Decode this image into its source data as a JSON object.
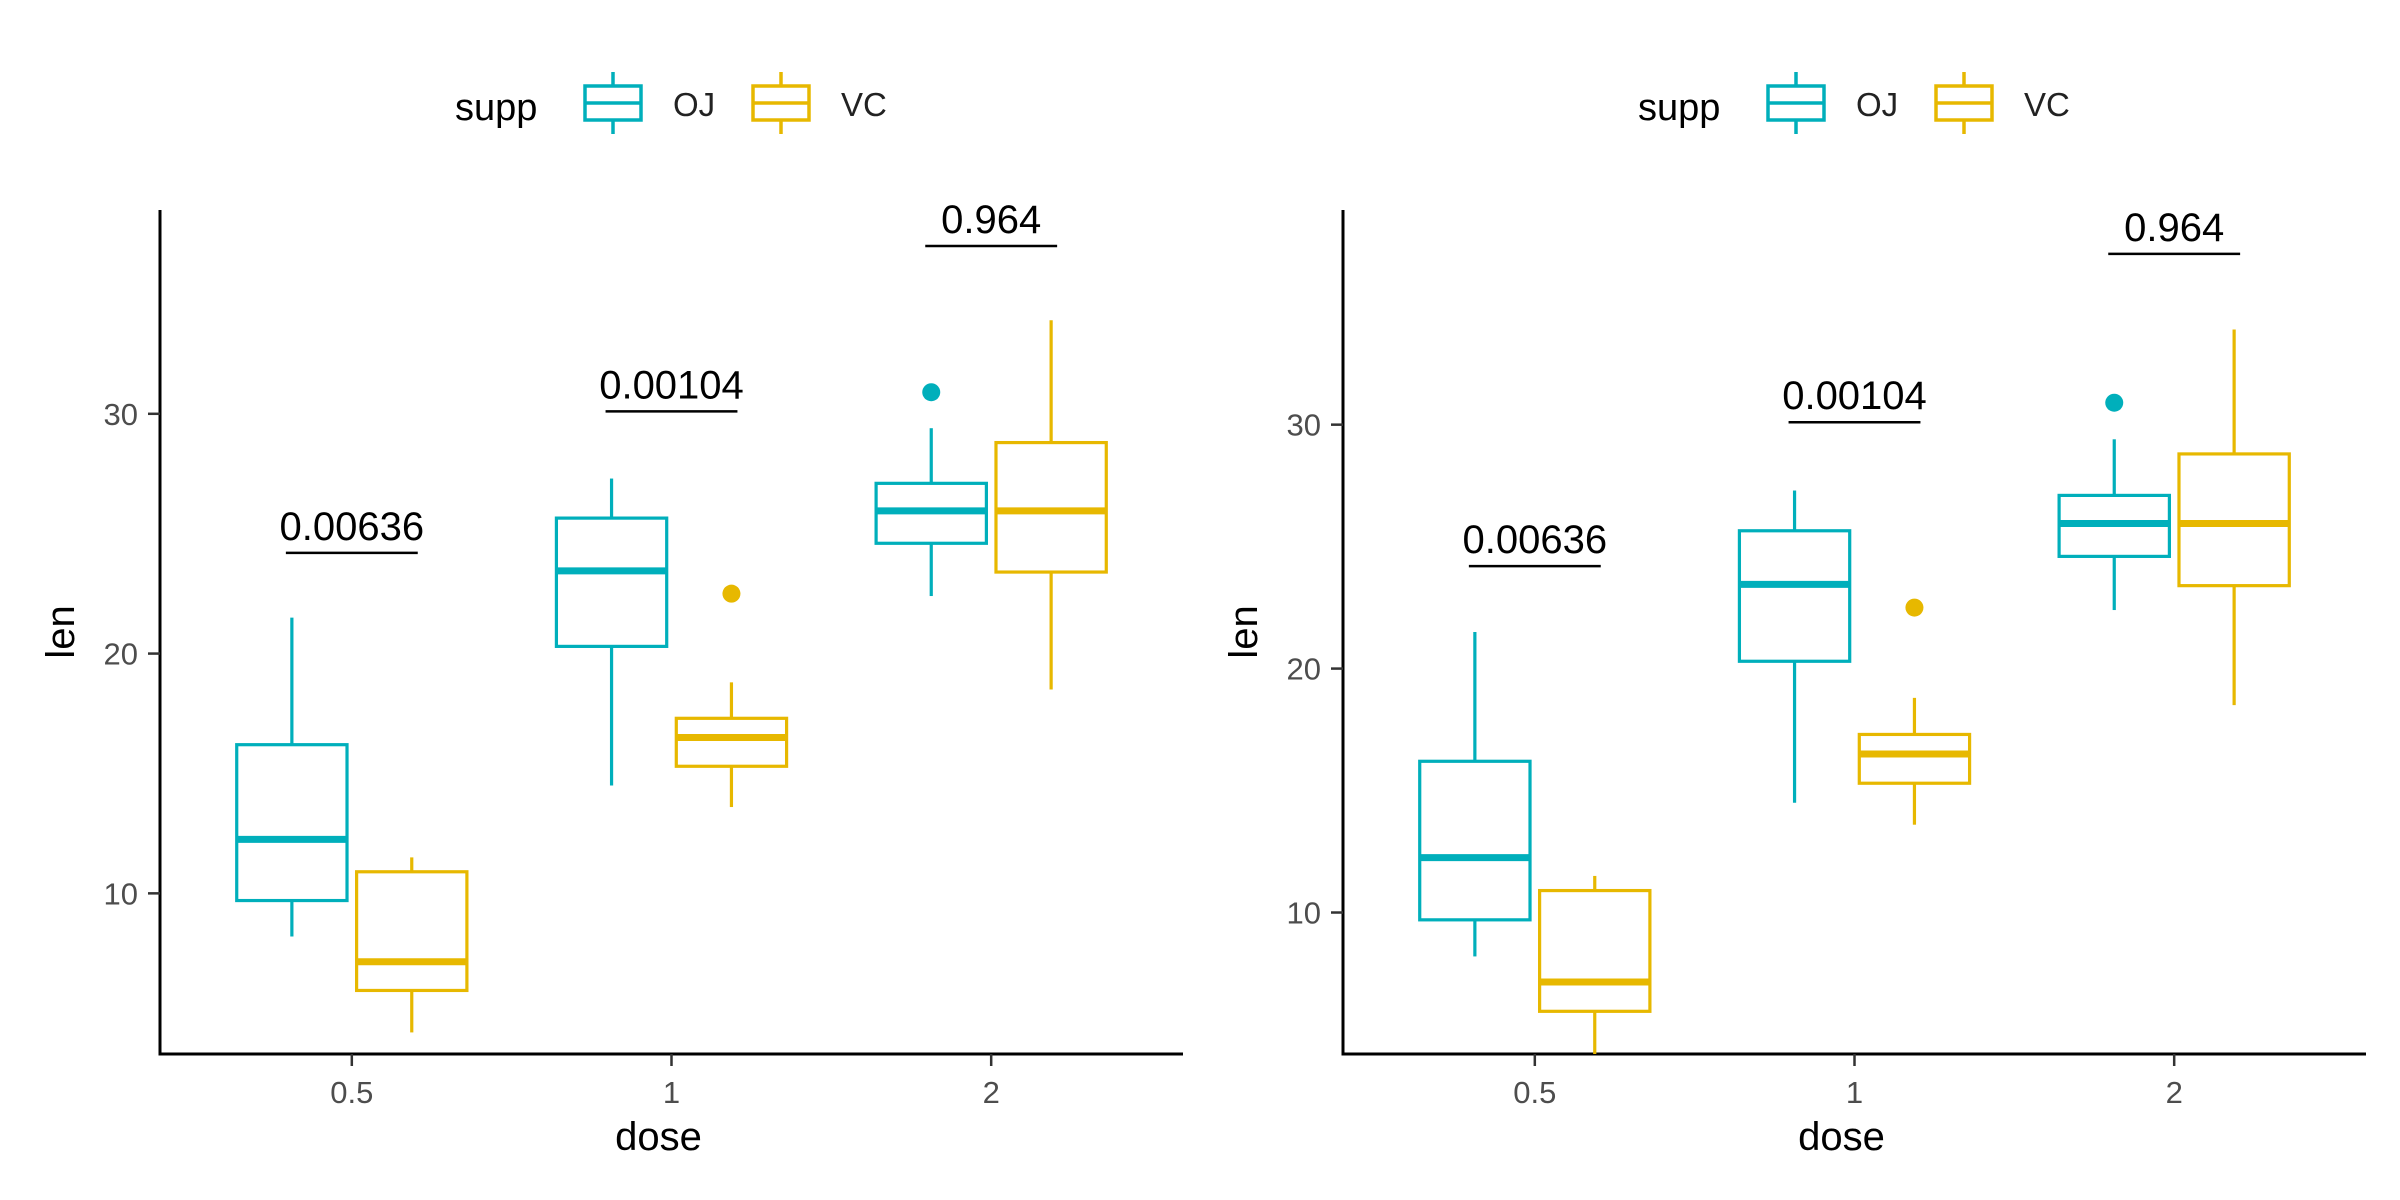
{
  "chart_data": [
    {
      "type": "box",
      "title": "",
      "xlabel": "dose",
      "ylabel": "len",
      "categories": [
        "0.5",
        "1",
        "2"
      ],
      "yticks": [
        10,
        20,
        30
      ],
      "ylim": [
        3.3,
        38.5
      ],
      "grid": false,
      "legend": {
        "title": "supp",
        "position": "top",
        "items": [
          "OJ",
          "VC"
        ]
      },
      "colors": {
        "OJ": "#00AFBB",
        "VC": "#E7B800"
      },
      "series": [
        {
          "name": "OJ",
          "boxes": [
            {
              "min": 8.2,
              "q1": 9.7,
              "median": 12.25,
              "q3": 16.2,
              "max": 21.5,
              "outliers": []
            },
            {
              "min": 14.5,
              "q1": 20.3,
              "median": 23.45,
              "q3": 25.65,
              "max": 27.3,
              "outliers": []
            },
            {
              "min": 22.4,
              "q1": 24.6,
              "median": 25.95,
              "q3": 27.1,
              "max": 29.4,
              "outliers": [
                30.9
              ]
            }
          ]
        },
        {
          "name": "VC",
          "boxes": [
            {
              "min": 4.2,
              "q1": 5.95,
              "median": 7.15,
              "q3": 10.9,
              "max": 11.5,
              "outliers": []
            },
            {
              "min": 13.6,
              "q1": 15.3,
              "median": 16.5,
              "q3": 17.3,
              "max": 18.8,
              "outliers": [
                22.5
              ]
            },
            {
              "min": 18.5,
              "q1": 23.4,
              "median": 25.95,
              "q3": 28.8,
              "max": 33.9,
              "outliers": []
            }
          ]
        }
      ],
      "annotations": [
        {
          "category": "0.5",
          "label": "0.00636",
          "y": 24.2
        },
        {
          "category": "1",
          "label": "0.00104",
          "y": 30.1
        },
        {
          "category": "2",
          "label": "0.964",
          "y": 37.0
        }
      ]
    },
    {
      "type": "box",
      "title": "",
      "xlabel": "dose",
      "ylabel": "len",
      "categories": [
        "0.5",
        "1",
        "2"
      ],
      "yticks": [
        10,
        20,
        30
      ],
      "ylim": [
        4.2,
        38.8
      ],
      "grid": false,
      "legend": {
        "title": "supp",
        "position": "top",
        "items": [
          "OJ",
          "VC"
        ]
      },
      "colors": {
        "OJ": "#00AFBB",
        "VC": "#E7B800"
      },
      "series": [
        {
          "name": "OJ",
          "boxes": [
            {
              "min": 8.2,
              "q1": 9.7,
              "median": 12.25,
              "q3": 16.2,
              "max": 21.5,
              "outliers": []
            },
            {
              "min": 14.5,
              "q1": 20.3,
              "median": 23.45,
              "q3": 25.65,
              "max": 27.3,
              "outliers": []
            },
            {
              "min": 22.4,
              "q1": 24.6,
              "median": 25.95,
              "q3": 27.1,
              "max": 29.4,
              "outliers": [
                30.9
              ]
            }
          ]
        },
        {
          "name": "VC",
          "boxes": [
            {
              "min": 4.2,
              "q1": 5.95,
              "median": 7.15,
              "q3": 10.9,
              "max": 11.5,
              "outliers": []
            },
            {
              "min": 13.6,
              "q1": 15.3,
              "median": 16.5,
              "q3": 17.3,
              "max": 18.8,
              "outliers": [
                22.5
              ]
            },
            {
              "min": 18.5,
              "q1": 23.4,
              "median": 25.95,
              "q3": 28.8,
              "max": 33.9,
              "outliers": []
            }
          ]
        }
      ],
      "annotations": [
        {
          "category": "0.5",
          "label": "0.00636",
          "y": 24.2
        },
        {
          "category": "1",
          "label": "0.00104",
          "y": 30.1
        },
        {
          "category": "2",
          "label": "0.964",
          "y": 37.0
        }
      ]
    }
  ]
}
